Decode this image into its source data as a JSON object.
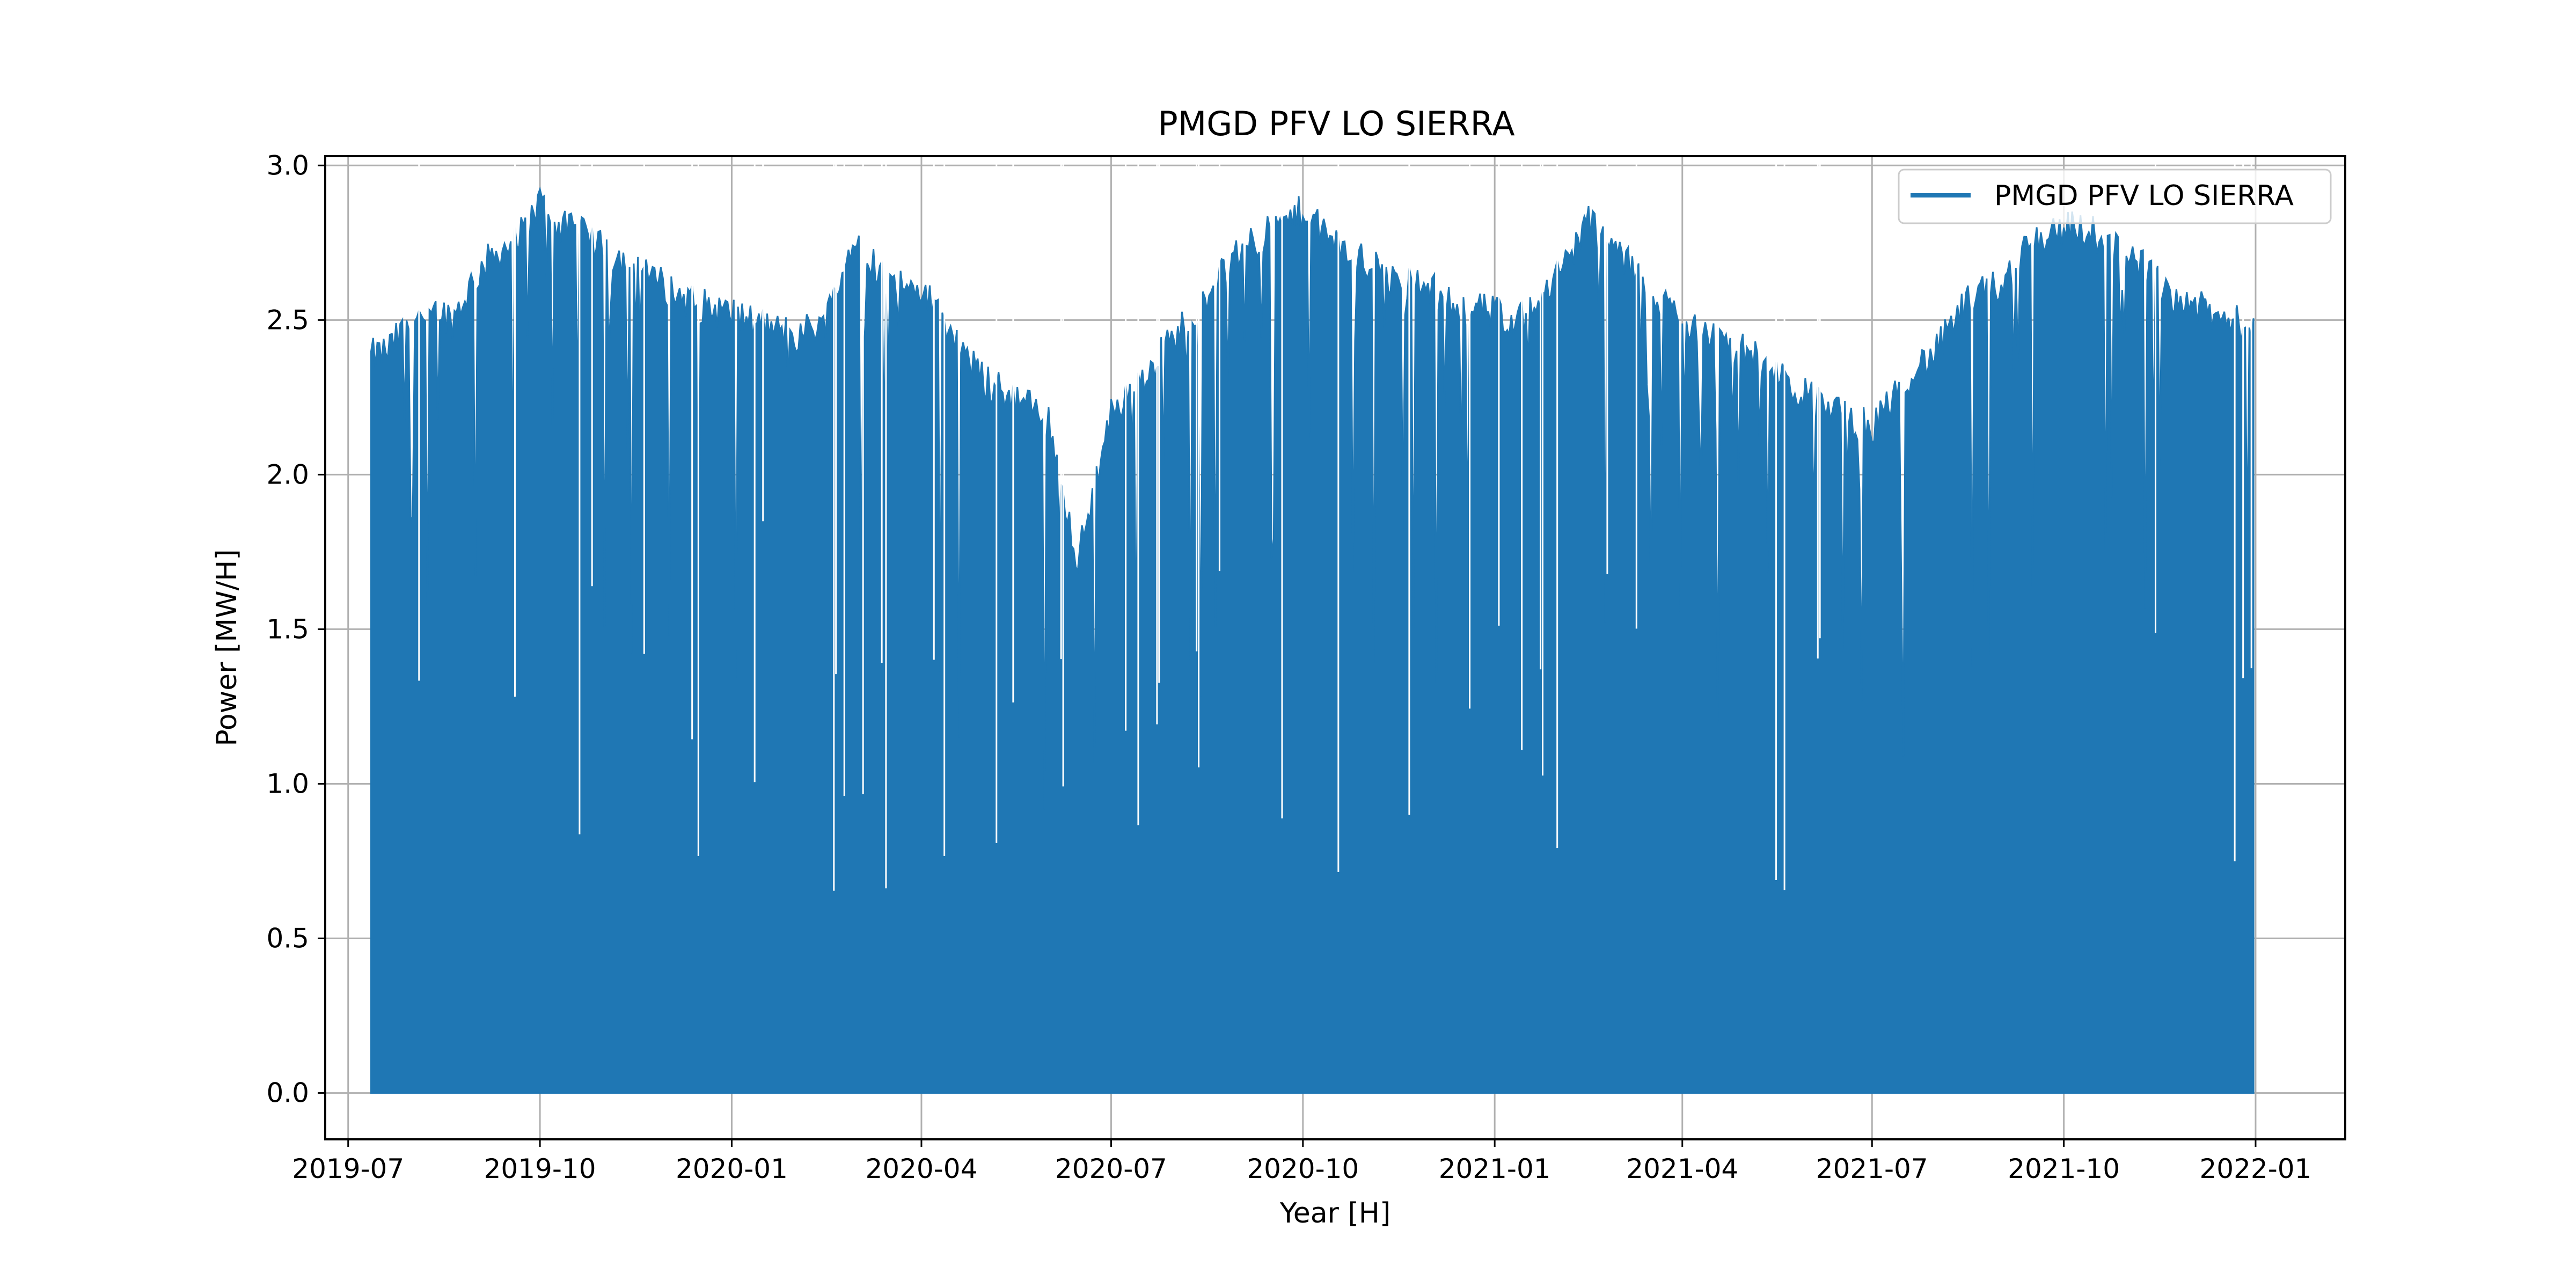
{
  "chart_data": {
    "type": "area",
    "title": "PMGD PFV LO SIERRA",
    "xlabel": "Year [H]",
    "ylabel": "Power [MW/H]",
    "xlim": [
      "2019-06-20",
      "2022-02-13"
    ],
    "ylim": [
      -0.15,
      3.03
    ],
    "grid": true,
    "legend_position": "upper right",
    "x_ticks": [
      "2019-07",
      "2019-10",
      "2020-01",
      "2020-04",
      "2020-07",
      "2020-10",
      "2021-01",
      "2021-04",
      "2021-07",
      "2021-10",
      "2022-01"
    ],
    "y_ticks": [
      "0.0",
      "0.5",
      "1.0",
      "1.5",
      "2.0",
      "2.5",
      "3.0"
    ],
    "series": [
      {
        "name": "PMGD PFV LO SIERRA",
        "color": "#1f77b4",
        "x": [
          "2019-07-12",
          "2019-07-20",
          "2019-08-01",
          "2019-08-10",
          "2019-08-20",
          "2019-09-01",
          "2019-09-10",
          "2019-09-20",
          "2019-10-01",
          "2019-10-10",
          "2019-10-20",
          "2019-11-01",
          "2019-11-15",
          "2019-12-01",
          "2019-12-15",
          "2020-01-01",
          "2020-01-15",
          "2020-02-01",
          "2020-02-15",
          "2020-03-01",
          "2020-03-15",
          "2020-04-01",
          "2020-04-15",
          "2020-05-01",
          "2020-05-15",
          "2020-06-01",
          "2020-06-15",
          "2020-07-01",
          "2020-07-15",
          "2020-08-01",
          "2020-08-15",
          "2020-09-01",
          "2020-09-15",
          "2020-10-01",
          "2020-10-15",
          "2020-11-01",
          "2020-11-15",
          "2020-12-01",
          "2020-12-15",
          "2021-01-01",
          "2021-01-15",
          "2021-02-01",
          "2021-02-15",
          "2021-03-01",
          "2021-03-15",
          "2021-04-01",
          "2021-04-15",
          "2021-05-01",
          "2021-05-15",
          "2021-06-01",
          "2021-06-15",
          "2021-07-01",
          "2021-07-15",
          "2021-08-01",
          "2021-08-15",
          "2021-09-01",
          "2021-09-15",
          "2021-10-01",
          "2021-10-15",
          "2021-11-01",
          "2021-11-15",
          "2021-12-01",
          "2021-12-15",
          "2021-12-31"
        ],
        "y": [
          2.38,
          2.4,
          2.5,
          2.55,
          2.5,
          2.65,
          2.72,
          2.75,
          2.88,
          2.8,
          2.78,
          2.72,
          2.68,
          2.6,
          2.55,
          2.52,
          2.48,
          2.45,
          2.5,
          2.78,
          2.62,
          2.6,
          2.45,
          2.3,
          2.25,
          2.18,
          1.72,
          2.2,
          2.3,
          2.45,
          2.58,
          2.72,
          2.78,
          2.85,
          2.75,
          2.68,
          2.62,
          2.6,
          2.55,
          2.52,
          2.5,
          2.65,
          2.82,
          2.72,
          2.6,
          2.5,
          2.45,
          2.4,
          2.32,
          2.25,
          2.2,
          2.15,
          2.3,
          2.4,
          2.55,
          2.62,
          2.75,
          2.8,
          2.78,
          2.72,
          2.62,
          2.55,
          2.5,
          2.48
        ]
      }
    ]
  }
}
